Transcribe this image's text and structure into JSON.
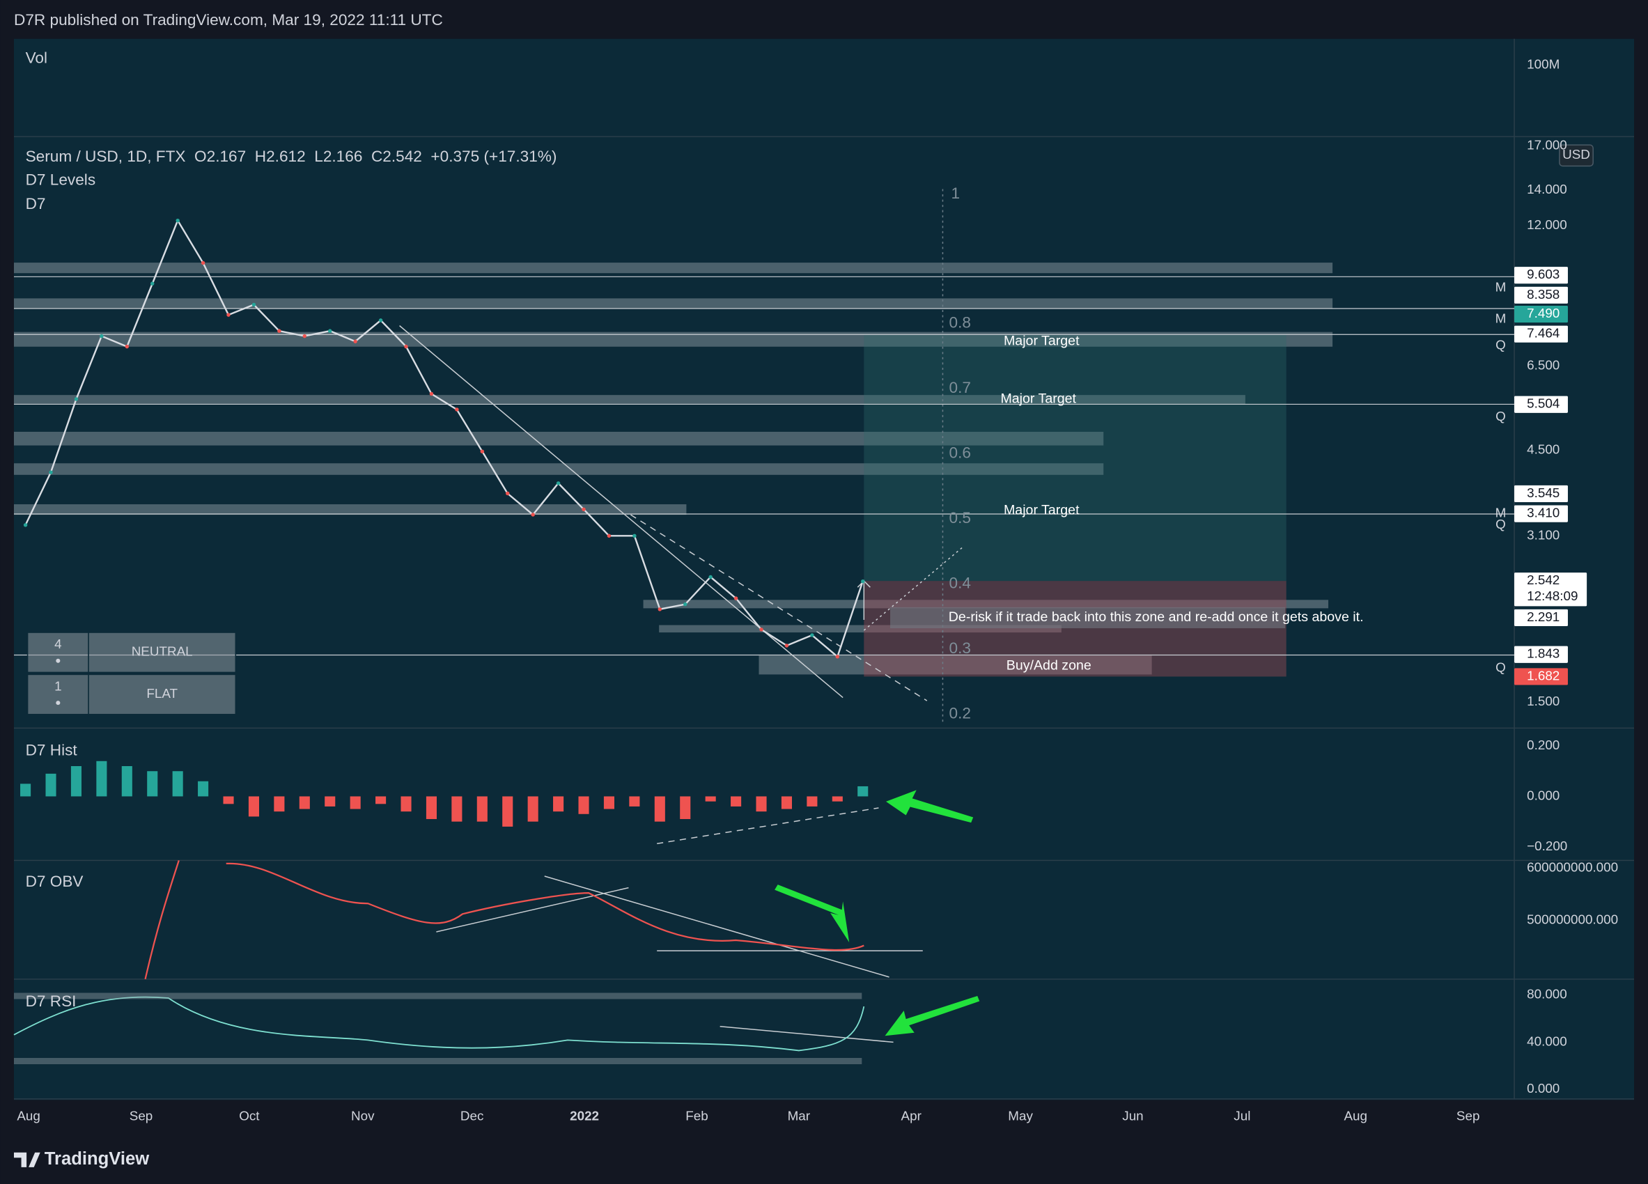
{
  "header": {
    "title": "D7R published on TradingView.com, Mar 19, 2022 11:11 UTC"
  },
  "vol_pane": {
    "title": "Vol",
    "axis_label": "100M"
  },
  "footer": {
    "brand": "TradingView"
  },
  "chart_data": [
    {
      "type": "line",
      "title": "Serum / USD, 1D, FTX  O2.167  H2.612  L2.166  C2.542  +0.375 (+17.31%)",
      "subtitles": [
        "D7 Levels",
        "D7"
      ],
      "currency": "USD",
      "countdown": "12:48:09",
      "xticks": [
        "Aug",
        "Sep",
        "Oct",
        "Nov",
        "Dec",
        "2022",
        "Feb",
        "Mar",
        "Apr",
        "May",
        "Jun",
        "Jul",
        "Aug",
        "Sep"
      ],
      "log_scale": true,
      "color": "#d9dde3",
      "values": [
        3.25,
        4.09,
        5.63,
        7.41,
        7.08,
        9.32,
        12.27,
        10.2,
        8.13,
        8.5,
        7.58,
        7.41,
        7.58,
        7.24,
        7.94,
        7.08,
        5.76,
        5.38,
        4.48,
        3.73,
        3.4,
        3.9,
        3.48,
        3.1,
        3.1,
        2.25,
        2.3,
        2.59,
        2.36,
        2.06,
        1.92,
        2.01,
        1.83,
        2.542
      ],
      "ylim": [
        1.34,
        17.7
      ],
      "yticks": [
        {
          "value": 17,
          "label": "17.000"
        },
        {
          "value": 14,
          "label": "14.000"
        },
        {
          "value": 12,
          "label": "12.000"
        },
        {
          "value": 6.5,
          "label": "6.500"
        },
        {
          "value": 4.5,
          "label": "4.500"
        },
        {
          "value": 3.1,
          "label": "3.100"
        },
        {
          "value": 1.5,
          "label": "1.500"
        }
      ],
      "levels": [
        {
          "value": 9.603,
          "color": "#ffffff",
          "line": true
        },
        {
          "value": 8.358,
          "color": "#ffffff",
          "line": true
        },
        {
          "value": 7.49,
          "label": "7.490",
          "color": "#26a69a",
          "line": false
        },
        {
          "value": 7.464,
          "color": "#ffffff",
          "line": true
        },
        {
          "value": 5.504,
          "color": "#ffffff",
          "line": true
        },
        {
          "value": 3.545,
          "color": "#ffffff",
          "line": false
        },
        {
          "value": 3.41,
          "label": "3.410",
          "color": "#ffffff",
          "line": true
        },
        {
          "value": 2.542,
          "color": "#ffffff",
          "line": false
        },
        {
          "value": 2.291,
          "color": "#ffffff",
          "line": false
        },
        {
          "value": 1.843,
          "color": "#ffffff",
          "line": true
        },
        {
          "value": 1.682,
          "color": "#ef5350",
          "line": false
        }
      ],
      "fib_labels": [
        1,
        0.8,
        0.7,
        0.6,
        0.5,
        0.4,
        0.3,
        0.2
      ],
      "zone_labels": [
        "Major Target",
        "Major Target",
        "Major Target",
        "De-risk if it trade back into this zone and re-add once it gets above it.",
        "Buy/Add zone"
      ],
      "markers": [
        "M",
        "M",
        "Q",
        "Q",
        "M",
        "Q",
        "Q"
      ],
      "status_table": [
        [
          "4",
          "NEUTRAL"
        ],
        [
          "1",
          "FLAT"
        ]
      ]
    },
    {
      "type": "bar",
      "title": "D7 Hist",
      "colors": {
        "up": "#26a69a",
        "down": "#ef5350"
      },
      "values": [
        0.05,
        0.09,
        0.12,
        0.14,
        0.12,
        0.1,
        0.1,
        0.06,
        -0.03,
        -0.08,
        -0.06,
        -0.05,
        -0.04,
        -0.05,
        -0.03,
        -0.06,
        -0.09,
        -0.1,
        -0.1,
        -0.12,
        -0.1,
        -0.06,
        -0.07,
        -0.05,
        -0.04,
        -0.1,
        -0.09,
        -0.02,
        -0.04,
        -0.06,
        -0.05,
        -0.04,
        -0.02,
        0.04
      ],
      "ylim": [
        -0.254,
        0.271
      ],
      "yticks": [
        {
          "value": 0.2,
          "label": "0.200"
        },
        {
          "value": 0,
          "label": "0.000"
        },
        {
          "value": -0.2,
          "label": "−0.200"
        }
      ]
    },
    {
      "type": "line",
      "title": "D7 OBV",
      "ylim": [
        386800000,
        615100000
      ],
      "yticks": [
        {
          "value": 600000000,
          "label": "600000000.000"
        },
        {
          "value": 500000000,
          "label": "500000000.000"
        }
      ]
    },
    {
      "type": "line",
      "title": "D7 RSI",
      "ylim": [
        -8,
        93.3
      ],
      "yticks": [
        {
          "value": 80,
          "label": "80.000"
        },
        {
          "value": 40,
          "label": "40.000"
        },
        {
          "value": 0,
          "label": "0.000"
        }
      ]
    }
  ]
}
